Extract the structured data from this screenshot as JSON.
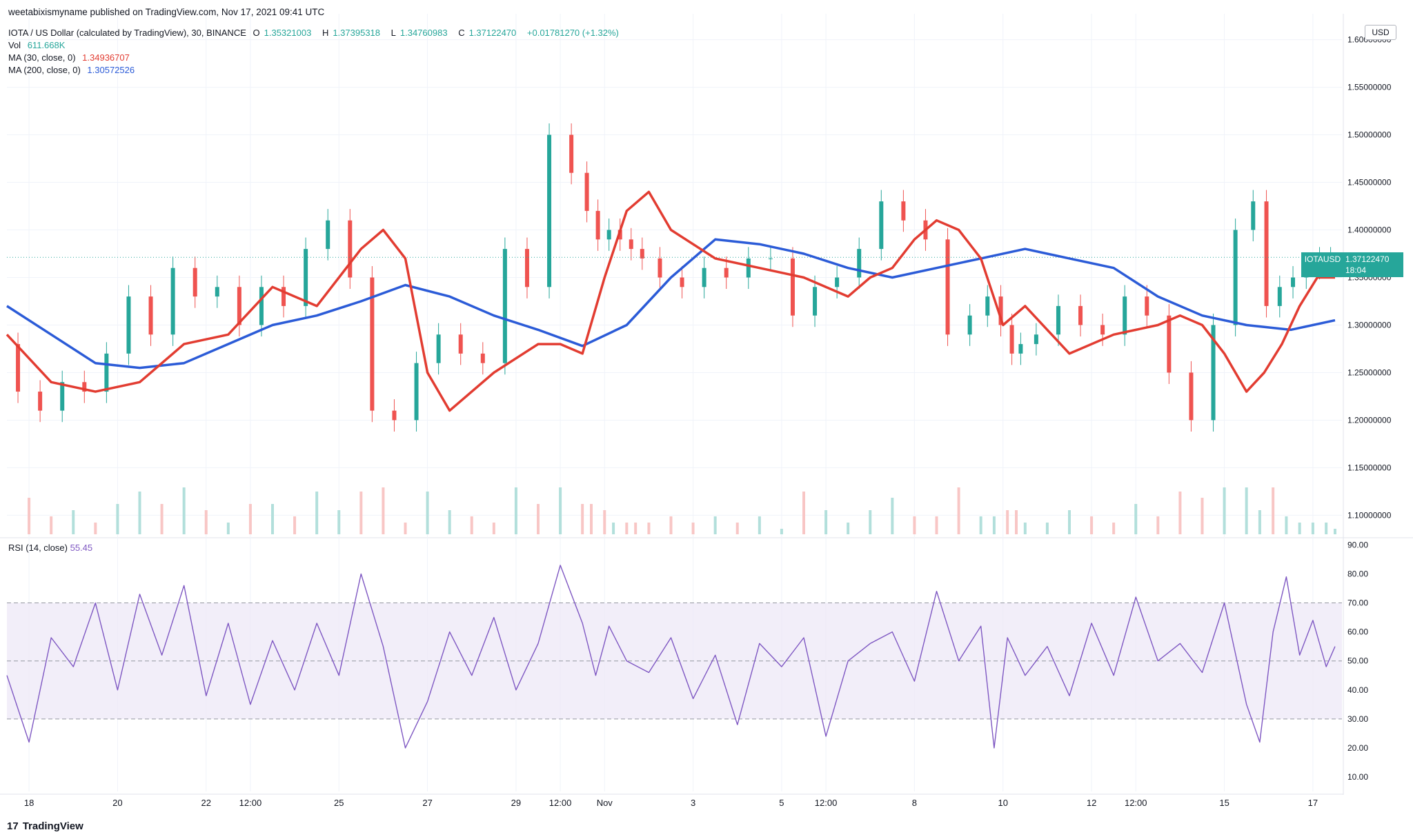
{
  "header": {
    "publisher": "weetabixismyname published on TradingView.com, Nov 17, 2021 09:41 UTC",
    "symbol_title": "IOTA / US Dollar (calculated by TradingView), 30, BINANCE",
    "ohlc": {
      "o_label": "O",
      "o": "1.35321003",
      "h_label": "H",
      "h": "1.37395318",
      "l_label": "L",
      "l": "1.34760983",
      "c_label": "C",
      "c": "1.37122470",
      "change": "+0.01781270 (+1.32%)"
    },
    "vol_label": "Vol",
    "vol": "611.668K",
    "ma30_label": "MA (30, close, 0)",
    "ma30": "1.34936707",
    "ma200_label": "MA (200, close, 0)",
    "ma200": "1.30572526"
  },
  "rsi_label": "RSI (14, close)",
  "rsi_value": "55.45",
  "currency_button": "USD",
  "price_tag": {
    "symbol": "IOTAUSD",
    "price": "1.37122470",
    "countdown": "18:04"
  },
  "brand": {
    "logo": "17",
    "name": "TradingView"
  },
  "colors": {
    "up": "#26a69a",
    "down": "#ef5350",
    "ma30": "#e23c31",
    "ma200": "#2b5bd7",
    "rsi": "#7e57c2",
    "rsi_band": "#ede7f6"
  },
  "chart_data": {
    "type": "line",
    "price_axis": {
      "ticks": [
        "1.60000000",
        "1.55000000",
        "1.50000000",
        "1.45000000",
        "1.40000000",
        "1.35000000",
        "1.30000000",
        "1.25000000",
        "1.20000000",
        "1.15000000",
        "1.10000000"
      ],
      "ylim": [
        1.08,
        1.62
      ]
    },
    "rsi_axis": {
      "ticks": [
        "90.00",
        "80.00",
        "70.00",
        "60.00",
        "50.00",
        "40.00",
        "30.00",
        "20.00",
        "10.00"
      ],
      "ylim": [
        5,
        92
      ],
      "bands": [
        30,
        50,
        70
      ]
    },
    "x_axis": {
      "labels": [
        "18",
        "20",
        "22",
        "12:00",
        "25",
        "27",
        "29",
        "12:00",
        "Nov",
        "3",
        "5",
        "12:00",
        "8",
        "10",
        "12",
        "12:00",
        "15",
        "17"
      ],
      "positions": [
        0.5,
        2.5,
        4.5,
        5.5,
        7.5,
        9.5,
        11.5,
        12.5,
        13.5,
        15.5,
        17.5,
        18.5,
        20.5,
        22.5,
        24.5,
        25.5,
        27.5,
        29.5
      ]
    },
    "price_series": {
      "name": "IOTAUSD",
      "x": [
        0,
        0.5,
        1,
        1.5,
        2,
        2.5,
        3,
        3.5,
        4,
        4.5,
        5,
        5.5,
        6,
        6.5,
        7,
        7.5,
        8,
        8.5,
        9,
        9.5,
        10,
        10.5,
        11,
        11.5,
        12,
        12.5,
        13,
        13.2,
        13.5,
        13.7,
        14,
        14.2,
        14.5,
        15,
        15.5,
        16,
        16.5,
        17,
        17.5,
        18,
        18.5,
        19,
        19.5,
        20,
        20.5,
        21,
        21.5,
        22,
        22.3,
        22.6,
        22.8,
        23,
        23.5,
        24,
        24.5,
        25,
        25.5,
        26,
        26.5,
        27,
        27.5,
        28,
        28.3,
        28.6,
        28.9,
        29.2,
        29.5,
        29.8,
        30
      ],
      "close": [
        1.28,
        1.23,
        1.21,
        1.24,
        1.23,
        1.27,
        1.33,
        1.29,
        1.36,
        1.33,
        1.34,
        1.3,
        1.34,
        1.32,
        1.38,
        1.41,
        1.35,
        1.21,
        1.2,
        1.26,
        1.29,
        1.27,
        1.26,
        1.38,
        1.34,
        1.5,
        1.46,
        1.42,
        1.39,
        1.4,
        1.39,
        1.38,
        1.37,
        1.35,
        1.34,
        1.36,
        1.35,
        1.37,
        1.37,
        1.31,
        1.34,
        1.35,
        1.38,
        1.43,
        1.41,
        1.39,
        1.29,
        1.31,
        1.33,
        1.3,
        1.27,
        1.28,
        1.29,
        1.32,
        1.3,
        1.29,
        1.33,
        1.31,
        1.25,
        1.2,
        1.3,
        1.4,
        1.43,
        1.32,
        1.34,
        1.35,
        1.36,
        1.37,
        1.37
      ]
    },
    "ma30_series": {
      "x": [
        0,
        1,
        2,
        3,
        4,
        5,
        6,
        7,
        7.5,
        8,
        8.5,
        9,
        9.5,
        10,
        11,
        12,
        12.5,
        13,
        13.5,
        14,
        14.5,
        15,
        16,
        17,
        18,
        19,
        19.5,
        20,
        20.5,
        21,
        21.5,
        22,
        22.5,
        23,
        24,
        25,
        26,
        26.5,
        27,
        27.5,
        28,
        28.4,
        28.8,
        29.2,
        29.6,
        30
      ],
      "y": [
        1.29,
        1.24,
        1.23,
        1.24,
        1.28,
        1.29,
        1.34,
        1.32,
        1.35,
        1.38,
        1.4,
        1.37,
        1.25,
        1.21,
        1.25,
        1.28,
        1.28,
        1.27,
        1.35,
        1.42,
        1.44,
        1.4,
        1.37,
        1.36,
        1.35,
        1.33,
        1.35,
        1.36,
        1.39,
        1.41,
        1.4,
        1.37,
        1.3,
        1.32,
        1.27,
        1.29,
        1.3,
        1.31,
        1.3,
        1.27,
        1.23,
        1.25,
        1.28,
        1.32,
        1.35,
        1.35
      ]
    },
    "ma200_series": {
      "x": [
        0,
        1,
        2,
        3,
        4,
        5,
        6,
        7,
        8,
        9,
        10,
        11,
        12,
        13,
        14,
        15,
        16,
        17,
        18,
        19,
        20,
        21,
        22,
        23,
        24,
        25,
        26,
        27,
        28,
        29,
        30
      ],
      "y": [
        1.32,
        1.29,
        1.26,
        1.255,
        1.26,
        1.28,
        1.3,
        1.31,
        1.325,
        1.342,
        1.33,
        1.31,
        1.295,
        1.278,
        1.3,
        1.35,
        1.39,
        1.385,
        1.375,
        1.36,
        1.35,
        1.36,
        1.37,
        1.38,
        1.37,
        1.36,
        1.33,
        1.31,
        1.3,
        1.295,
        1.305
      ]
    },
    "rsi_series": {
      "name": "RSI",
      "x": [
        0,
        0.5,
        1,
        1.5,
        2,
        2.5,
        3,
        3.5,
        4,
        4.5,
        5,
        5.5,
        6,
        6.5,
        7,
        7.5,
        8,
        8.5,
        9,
        9.5,
        10,
        10.5,
        11,
        11.5,
        12,
        12.5,
        13,
        13.3,
        13.6,
        14,
        14.5,
        15,
        15.5,
        16,
        16.5,
        17,
        17.5,
        18,
        18.5,
        19,
        19.5,
        20,
        20.5,
        21,
        21.5,
        22,
        22.3,
        22.6,
        23,
        23.5,
        24,
        24.5,
        25,
        25.5,
        26,
        26.5,
        27,
        27.5,
        28,
        28.3,
        28.6,
        28.9,
        29.2,
        29.5,
        29.8,
        30
      ],
      "y": [
        45,
        22,
        58,
        48,
        70,
        40,
        73,
        52,
        76,
        38,
        63,
        35,
        57,
        40,
        63,
        45,
        80,
        55,
        20,
        36,
        60,
        45,
        65,
        40,
        56,
        83,
        63,
        45,
        62,
        50,
        46,
        58,
        37,
        52,
        28,
        56,
        48,
        58,
        24,
        50,
        56,
        60,
        43,
        74,
        50,
        62,
        20,
        58,
        45,
        55,
        38,
        63,
        45,
        72,
        50,
        56,
        46,
        70,
        35,
        22,
        60,
        79,
        52,
        64,
        48,
        55
      ]
    }
  }
}
